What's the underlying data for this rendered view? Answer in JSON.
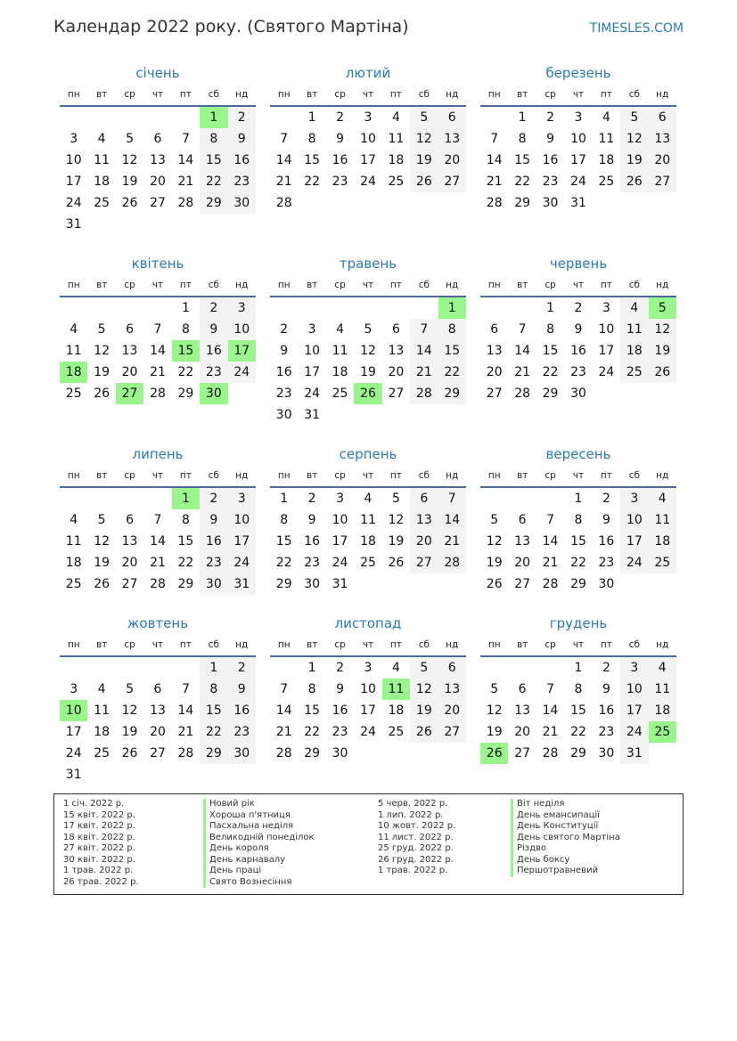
{
  "header": {
    "title": "Календар 2022 року. (Святого Мартіна)",
    "brand": "TIMESLES.COM"
  },
  "weekdays": [
    "пн",
    "вт",
    "ср",
    "чт",
    "пт",
    "сб",
    "нд"
  ],
  "colors": {
    "accent": "#2a7ab8",
    "holiday": "#99f58c",
    "weekend": "#f3f3f3"
  },
  "months": [
    {
      "name": "січень",
      "start_offset": 5,
      "days": 31,
      "holidays": [
        1
      ]
    },
    {
      "name": "лютий",
      "start_offset": 1,
      "days": 28,
      "holidays": []
    },
    {
      "name": "березень",
      "start_offset": 1,
      "days": 31,
      "holidays": []
    },
    {
      "name": "квітень",
      "start_offset": 4,
      "days": 30,
      "holidays": [
        15,
        17,
        18,
        27,
        30
      ]
    },
    {
      "name": "травень",
      "start_offset": 6,
      "days": 31,
      "holidays": [
        1,
        26
      ]
    },
    {
      "name": "червень",
      "start_offset": 2,
      "days": 30,
      "holidays": [
        5
      ]
    },
    {
      "name": "липень",
      "start_offset": 4,
      "days": 31,
      "holidays": [
        1
      ]
    },
    {
      "name": "серпень",
      "start_offset": 0,
      "days": 31,
      "holidays": []
    },
    {
      "name": "вересень",
      "start_offset": 3,
      "days": 30,
      "holidays": []
    },
    {
      "name": "жовтень",
      "start_offset": 5,
      "days": 31,
      "holidays": [
        10
      ]
    },
    {
      "name": "листопад",
      "start_offset": 1,
      "days": 30,
      "holidays": [
        11
      ]
    },
    {
      "name": "грудень",
      "start_offset": 3,
      "days": 31,
      "holidays": [
        25,
        26
      ]
    }
  ],
  "legend": [
    [
      {
        "date": "1 січ. 2022 р.",
        "name": "Новий рік"
      },
      {
        "date": "15 квіт. 2022 р.",
        "name": "Хороша п'ятниця"
      },
      {
        "date": "17 квіт. 2022 р.",
        "name": "Пасхальна неділя"
      },
      {
        "date": "18 квіт. 2022 р.",
        "name": "Великодній понеділок"
      },
      {
        "date": "27 квіт. 2022 р.",
        "name": "День короля"
      },
      {
        "date": "30 квіт. 2022 р.",
        "name": "День карнавалу"
      },
      {
        "date": "1 трав. 2022 р.",
        "name": "День праці"
      },
      {
        "date": "26 трав. 2022 р.",
        "name": "Свято Вознесіння"
      }
    ],
    [
      {
        "date": "5 черв. 2022 р.",
        "name": "Віт неділя"
      },
      {
        "date": "1 лип. 2022 р.",
        "name": "День емансипації"
      },
      {
        "date": "10 жовт. 2022 р.",
        "name": "День Конституції"
      },
      {
        "date": "11 лист. 2022 р.",
        "name": "День святого Мартіна"
      },
      {
        "date": "25 груд. 2022 р.",
        "name": "Різдво"
      },
      {
        "date": "26 груд. 2022 р.",
        "name": "День боксу"
      },
      {
        "date": "1 трав. 2022 р.",
        "name": "Першотравневий"
      }
    ]
  ]
}
